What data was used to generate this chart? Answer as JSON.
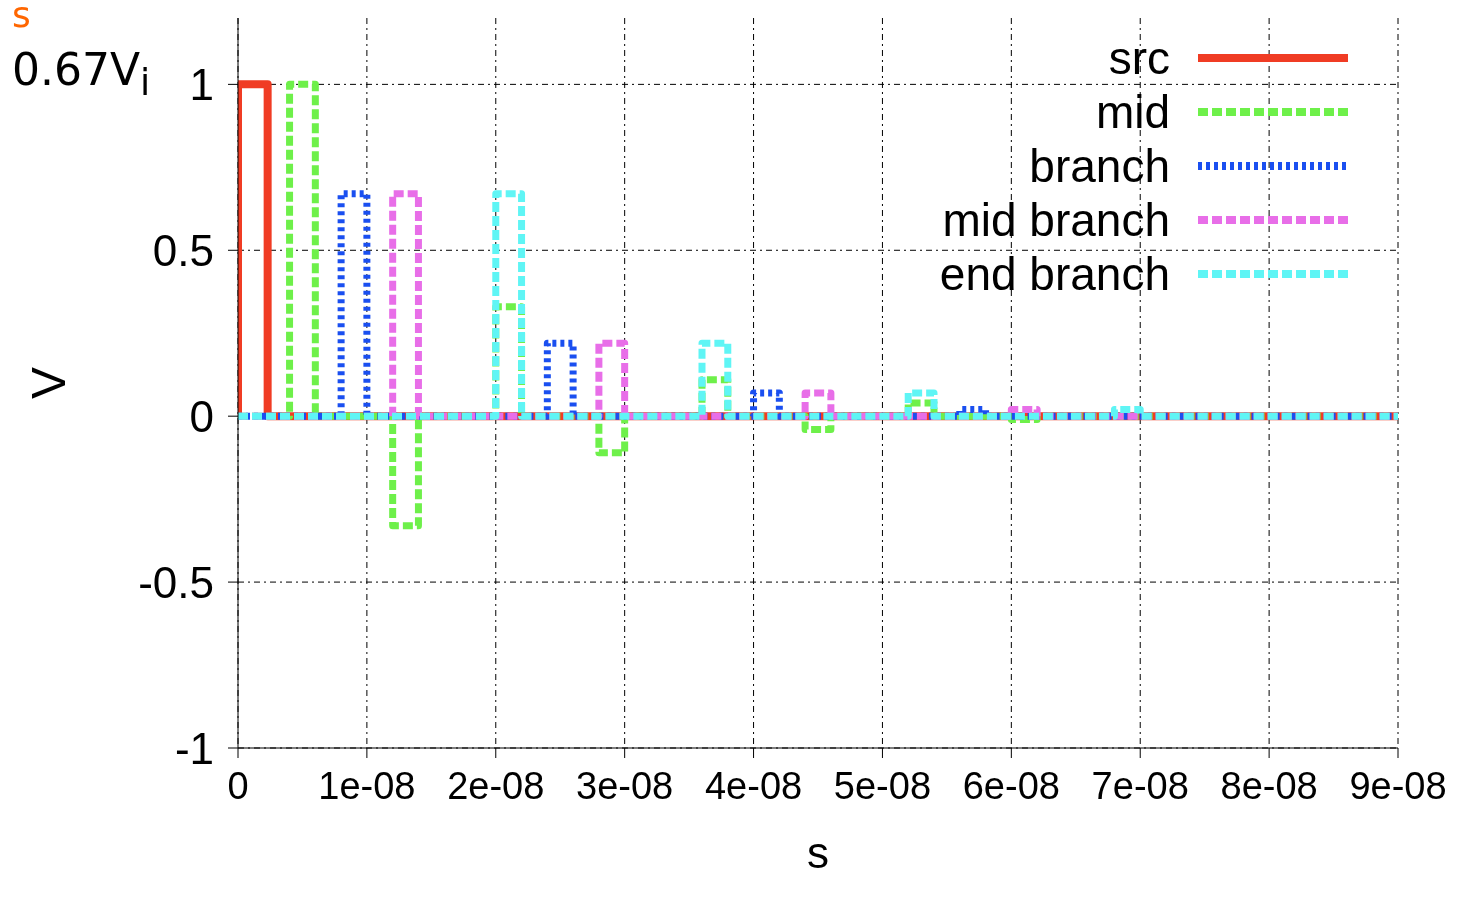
{
  "chart_data": {
    "type": "line",
    "xlabel": "s",
    "ylabel": "V",
    "annotations": [
      "s",
      "0.67V$_{i}$"
    ],
    "xlim": [
      0,
      9e-08
    ],
    "xticks": [
      0,
      {
        "value": 1e-08,
        "label": "1e-08"
      },
      {
        "value": 2e-08,
        "label": "2e-08"
      },
      {
        "value": 3e-08,
        "label": "3e-08"
      },
      {
        "value": 4e-08,
        "label": "4e-08"
      },
      {
        "value": 5e-08,
        "label": "5e-08"
      },
      {
        "value": 6e-08,
        "label": "6e-08"
      },
      {
        "value": 7e-08,
        "label": "7e-08"
      },
      {
        "value": 8e-08,
        "label": "8e-08"
      },
      {
        "value": 9e-08,
        "label": "9e-08"
      }
    ],
    "ylim": [
      -1,
      1.2
    ],
    "yticks": [
      -1,
      -0.5,
      0,
      0.5,
      1
    ],
    "grid": true,
    "legend": "top right",
    "series": [
      {
        "name": "src",
        "color": "#f03c24",
        "line_style": "solid",
        "x": [
          0,
          0,
          2.3e-09,
          2.3e-09,
          9e-08
        ],
        "values": [
          0,
          1,
          1,
          0,
          0
        ]
      },
      {
        "name": "mid",
        "color": "#6ef04a",
        "line_style": "dashed",
        "x": [
          0,
          4e-09,
          4e-09,
          6e-09,
          6e-09,
          1.2e-08,
          1.2e-08,
          1.4e-08,
          1.4e-08,
          2e-08,
          2e-08,
          2.2e-08,
          2.2e-08,
          2.8e-08,
          2.8e-08,
          3e-08,
          3e-08,
          3.6e-08,
          3.6e-08,
          3.8e-08,
          3.8e-08,
          4.4e-08,
          4.4e-08,
          4.6e-08,
          4.6e-08,
          5.2e-08,
          5.2e-08,
          5.4e-08,
          5.4e-08,
          6e-08,
          6e-08,
          6.2e-08,
          6.2e-08,
          9e-08
        ],
        "values": [
          0,
          0,
          1,
          1,
          0,
          0,
          -0.33,
          -0.33,
          0,
          0,
          0.33,
          0.33,
          0,
          0,
          -0.11,
          -0.11,
          0,
          0,
          0.11,
          0.11,
          0,
          0,
          -0.04,
          -0.04,
          0,
          0,
          0.04,
          0.04,
          0,
          0,
          -0.01,
          -0.01,
          0,
          0
        ]
      },
      {
        "name": "branch",
        "color": "#1a4ff0",
        "line_style": "dotted",
        "x": [
          0,
          8e-09,
          8e-09,
          1e-08,
          1e-08,
          2.4e-08,
          2.4e-08,
          2.6e-08,
          2.6e-08,
          4e-08,
          4e-08,
          4.2e-08,
          4.2e-08,
          5.6e-08,
          5.6e-08,
          5.8e-08,
          5.8e-08,
          9e-08
        ],
        "values": [
          0,
          0,
          0.67,
          0.67,
          0,
          0,
          0.22,
          0.22,
          0,
          0,
          0.07,
          0.07,
          0,
          0,
          0.02,
          0.02,
          0,
          0
        ]
      },
      {
        "name": "mid branch",
        "color": "#e86ee8",
        "line_style": "dashed",
        "x": [
          0,
          1.2e-08,
          1.2e-08,
          1.4e-08,
          1.4e-08,
          2.8e-08,
          2.8e-08,
          3e-08,
          3e-08,
          4.4e-08,
          4.4e-08,
          4.6e-08,
          4.6e-08,
          6e-08,
          6e-08,
          6.2e-08,
          6.2e-08,
          9e-08
        ],
        "values": [
          0,
          0,
          0.67,
          0.67,
          0,
          0,
          0.22,
          0.22,
          0,
          0,
          0.07,
          0.07,
          0,
          0,
          0.02,
          0.02,
          0,
          0
        ]
      },
      {
        "name": "end branch",
        "color": "#5ff5f5",
        "line_style": "dashed",
        "x": [
          0,
          2e-08,
          2e-08,
          2.2e-08,
          2.2e-08,
          3.6e-08,
          3.6e-08,
          3.8e-08,
          3.8e-08,
          5.2e-08,
          5.2e-08,
          5.4e-08,
          5.4e-08,
          6.8e-08,
          6.8e-08,
          7e-08,
          7e-08,
          9e-08
        ],
        "values": [
          0,
          0,
          0.67,
          0.67,
          0,
          0,
          0.22,
          0.22,
          0,
          0,
          0.07,
          0.07,
          0,
          0,
          0.02,
          0.02,
          0,
          0
        ]
      }
    ]
  }
}
